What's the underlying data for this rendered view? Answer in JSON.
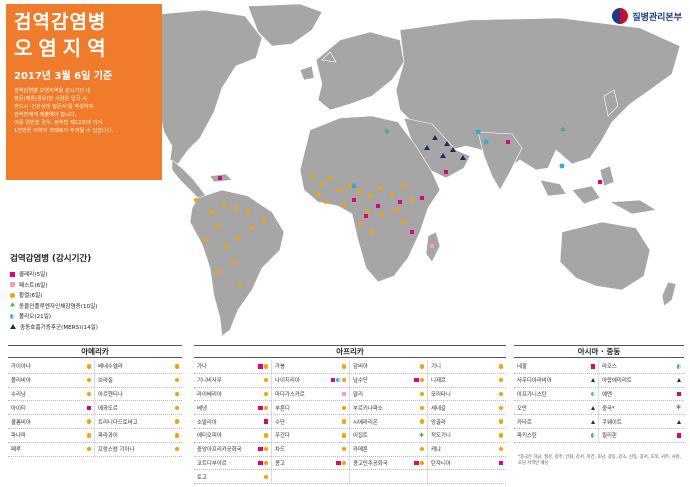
{
  "header": {
    "title_line1": "검역감염병",
    "title_line2": "오염지역",
    "date": "2017년 3월 6일 기준",
    "description": [
      "검역감염병 오염지역을 감시기간 내",
      "방문(체류/경유)한 사람은 입국 시",
      "반드시 '건강상태 질문서'를 작성하여",
      "검역관에게 제출해야 합니다.",
      "이를 위반할 경우, 검역법 제12조에 의거",
      "1천만원 이하의 과태료가 부과될 수 있습니다."
    ]
  },
  "brand": {
    "name": "질병관리본부"
  },
  "legend": {
    "title": "검역감염병 (감시기간)",
    "items": [
      {
        "marker": "magenta-square",
        "label": "콜레라(5일)"
      },
      {
        "marker": "pink-square",
        "label": "페스트(6일)"
      },
      {
        "marker": "orange-dot",
        "label": "황열(6일)"
      },
      {
        "marker": "green-star",
        "label": "동물인플루엔자인체감염증(10일)"
      },
      {
        "marker": "blue-half-circle",
        "label": "폴리오(21일)"
      },
      {
        "marker": "navy-triangle",
        "label": "중동호흡기증후군(MERS)(14일)"
      }
    ]
  },
  "colors": {
    "accent": "#f07b2a",
    "cholera": "#e4007f",
    "plague": "#f5a0c0",
    "yellow_fever": "#f4a300",
    "avian_flu": "#4caf50",
    "polio": "#3aa8d8",
    "mers": "#1f2a66",
    "land": "#a6a6a6"
  },
  "regions": {
    "americas": {
      "title": "아메리카",
      "rows": [
        [
          {
            "name": "가이아나",
            "m": [
              "dot"
            ]
          },
          {
            "name": "베네수엘라",
            "m": [
              "dot"
            ]
          }
        ],
        [
          {
            "name": "볼리비아",
            "m": [
              "dot"
            ]
          },
          {
            "name": "브라질",
            "m": [
              "dot"
            ]
          }
        ],
        [
          {
            "name": "수리남",
            "m": [
              "dot"
            ]
          },
          {
            "name": "아르헨티나",
            "m": [
              "dot"
            ]
          }
        ],
        [
          {
            "name": "아이티",
            "m": [
              "sq"
            ]
          },
          {
            "name": "에콰도르",
            "m": [
              "dot"
            ]
          }
        ],
        [
          {
            "name": "콜롬비아",
            "m": [
              "dot"
            ]
          },
          {
            "name": "트리니다드토바고",
            "m": [
              "dot"
            ]
          }
        ],
        [
          {
            "name": "파나마",
            "m": [
              "dot"
            ]
          },
          {
            "name": "파라과이",
            "m": [
              "dot"
            ]
          }
        ],
        [
          {
            "name": "페루",
            "m": [
              "dot"
            ]
          },
          {
            "name": "프랑스령 기아나",
            "m": [
              "dot"
            ]
          }
        ]
      ]
    },
    "africa": {
      "title": "아프리카",
      "rows": [
        [
          {
            "name": "가나",
            "m": [
              "sq",
              "dot"
            ]
          },
          {
            "name": "가봉",
            "m": [
              "dot"
            ]
          },
          {
            "name": "감비아",
            "m": [
              "dot"
            ]
          },
          {
            "name": "기니",
            "m": [
              "dot"
            ]
          }
        ],
        [
          {
            "name": "기니비사우",
            "m": [
              "dot"
            ]
          },
          {
            "name": "나이지리아",
            "m": [
              "sq",
              "half",
              "dot"
            ]
          },
          {
            "name": "남수단",
            "m": [
              "sq",
              "dot"
            ]
          },
          {
            "name": "니제르",
            "m": [
              "dot"
            ]
          }
        ],
        [
          {
            "name": "라이베리아",
            "m": [
              "dot"
            ]
          },
          {
            "name": "마다가스카르",
            "m": [
              "pink"
            ]
          },
          {
            "name": "말리",
            "m": [
              "dot"
            ]
          },
          {
            "name": "모리타니",
            "m": [
              "dot"
            ]
          }
        ],
        [
          {
            "name": "베냉",
            "m": [
              "sq",
              "dot"
            ]
          },
          {
            "name": "부룬디",
            "m": [
              "dot"
            ]
          },
          {
            "name": "부르키나파소",
            "m": [
              "dot"
            ]
          },
          {
            "name": "세네갈",
            "m": [
              "dot"
            ]
          }
        ],
        [
          {
            "name": "소말리아",
            "m": [
              "sq"
            ]
          },
          {
            "name": "수단",
            "m": [
              "dot"
            ]
          },
          {
            "name": "시에라리온",
            "m": [
              "dot"
            ]
          },
          {
            "name": "앙골라",
            "m": [
              "dot"
            ]
          }
        ],
        [
          {
            "name": "에티오피아",
            "m": [
              "dot"
            ]
          },
          {
            "name": "우간다",
            "m": [
              "dot"
            ]
          },
          {
            "name": "이집트",
            "m": [
              "star"
            ]
          },
          {
            "name": "적도기니",
            "m": [
              "dot"
            ]
          }
        ],
        [
          {
            "name": "중앙아프리카공화국",
            "m": [
              "sq",
              "dot"
            ]
          },
          {
            "name": "차드",
            "m": [
              "dot"
            ]
          },
          {
            "name": "카메룬",
            "m": [
              "dot"
            ]
          },
          {
            "name": "케냐",
            "m": [
              "dot"
            ]
          }
        ],
        [
          {
            "name": "코트디부아르",
            "m": [
              "sq",
              "dot"
            ]
          },
          {
            "name": "콩고",
            "m": [
              "sq",
              "dot"
            ]
          },
          {
            "name": "콩고민주공화국",
            "m": [
              "sq",
              "dot"
            ]
          },
          {
            "name": "탄자니아",
            "m": [
              "sq"
            ]
          }
        ],
        [
          {
            "name": "토고",
            "m": [
              "dot"
            ]
          }
        ]
      ]
    },
    "asia": {
      "title": "아시아 · 중동",
      "rows": [
        [
          {
            "name": "네팔",
            "m": [
              "sq"
            ]
          },
          {
            "name": "라오스",
            "m": [
              "half"
            ]
          }
        ],
        [
          {
            "name": "사우디아라비아",
            "m": [
              "tri"
            ]
          },
          {
            "name": "아랍에미리트",
            "m": [
              "tri"
            ]
          }
        ],
        [
          {
            "name": "아프가니스탄",
            "m": [
              "half"
            ]
          },
          {
            "name": "예멘",
            "m": [
              "sq"
            ]
          }
        ],
        [
          {
            "name": "오만",
            "m": [
              "tri"
            ]
          },
          {
            "name": "중국*",
            "m": [
              "star"
            ]
          }
        ],
        [
          {
            "name": "카타르",
            "m": [
              "tri"
            ]
          },
          {
            "name": "쿠웨이트",
            "m": [
              "tri"
            ]
          }
        ],
        [
          {
            "name": "파키스탄",
            "m": [
              "half"
            ]
          },
          {
            "name": "필리핀",
            "m": [
              "sq"
            ]
          }
        ]
      ],
      "note": "*중국은 하남, 절강, 광주, 안휘, 강서, 복건, 호남, 광동, 강소, 산동, 광서, 호북, 귀주, 사천, 호남 지역만 해당"
    }
  }
}
